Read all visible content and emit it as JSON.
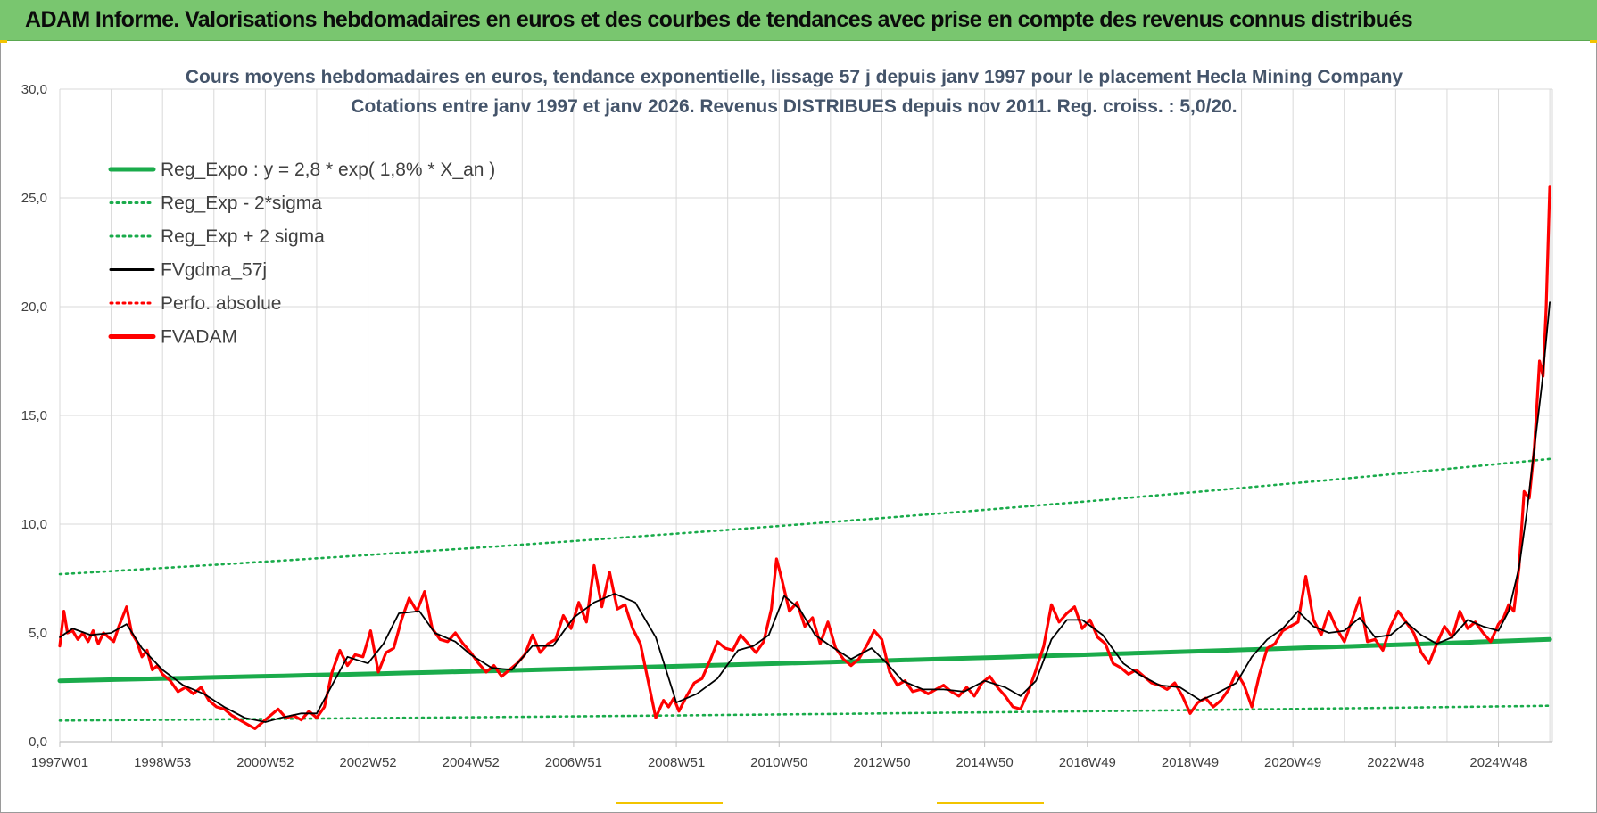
{
  "banner": {
    "title": "ADAM Informe. Valorisations hebdomadaires en euros et des courbes de tendances avec prise en compte des revenus connus distribués"
  },
  "colors": {
    "banner_bg": "#79c66f",
    "reg_expo": "#1aab4b",
    "bands": "#1aab4b",
    "fvgdma": "#000000",
    "perfo": "#ff0000",
    "fvadam": "#ff0000",
    "grid": "#d9d9d9"
  },
  "chart_data": {
    "type": "line",
    "title": "Cours moyens hebdomadaires en euros, tendance exponentielle, lissage 57 j depuis janv 1997 pour le placement Hecla Mining Company",
    "subtitle": "Cotations entre janv 1997 et janv 2026. Revenus DISTRIBUES depuis nov 2011. Reg. croiss. : 5,0/20.",
    "xlabel": "",
    "ylabel": "",
    "ylim": [
      0,
      30
    ],
    "xlim": [
      1997.0,
      2026.05
    ],
    "y_ticks": [
      "0,0",
      "5,0",
      "10,0",
      "15,0",
      "20,0",
      "25,0",
      "30,0"
    ],
    "x_tick_labels": [
      "1997W01",
      "1998W53",
      "2000W52",
      "2002W52",
      "2004W52",
      "2006W51",
      "2008W51",
      "2010W50",
      "2012W50",
      "2014W50",
      "2016W49",
      "2018W49",
      "2020W49",
      "2022W48",
      "2024W48"
    ],
    "x_tick_positions": [
      1997.0,
      1999.0,
      2001.0,
      2003.0,
      2005.0,
      2007.0,
      2009.0,
      2011.0,
      2013.0,
      2015.0,
      2017.0,
      2019.0,
      2021.0,
      2023.0,
      2025.0
    ],
    "grid": true,
    "legend_position": "top-left",
    "series": [
      {
        "name": "Reg_Expo : y = 2,8 * exp( 1,8% *  X_an )",
        "style": "solid-thick",
        "color": "#1aab4b",
        "x": [
          1997.0,
          2026.0
        ],
        "y": [
          2.8,
          4.7
        ]
      },
      {
        "name": "Reg_Exp - 2*sigma",
        "style": "dotted",
        "color": "#1aab4b",
        "x": [
          1997.0,
          2026.0
        ],
        "y": [
          0.97,
          1.65
        ]
      },
      {
        "name": "Reg_Exp + 2 sigma",
        "style": "dotted",
        "color": "#1aab4b",
        "x": [
          1997.0,
          2026.0
        ],
        "y": [
          7.7,
          13.0
        ]
      },
      {
        "name": "FVgdma_57j",
        "style": "solid-thin",
        "color": "#000000",
        "x": [
          1997.0,
          1997.25,
          1997.6,
          1998.0,
          1998.3,
          1998.6,
          1999.0,
          1999.4,
          1999.8,
          2000.2,
          2000.6,
          2001.0,
          2001.3,
          2001.7,
          2002.0,
          2002.3,
          2002.6,
          2003.0,
          2003.3,
          2003.6,
          2004.0,
          2004.3,
          2004.7,
          2005.0,
          2005.4,
          2005.8,
          2006.2,
          2006.6,
          2007.0,
          2007.4,
          2007.8,
          2008.2,
          2008.6,
          2009.0,
          2009.4,
          2009.8,
          2010.2,
          2010.5,
          2010.8,
          2011.1,
          2011.4,
          2011.7,
          2012.0,
          2012.4,
          2012.8,
          2013.1,
          2013.4,
          2013.8,
          2014.2,
          2014.6,
          2015.0,
          2015.4,
          2015.7,
          2016.0,
          2016.3,
          2016.6,
          2016.9,
          2017.3,
          2017.7,
          2018.0,
          2018.4,
          2018.8,
          2019.2,
          2019.5,
          2019.9,
          2020.2,
          2020.5,
          2020.8,
          2021.1,
          2021.4,
          2021.7,
          2022.0,
          2022.3,
          2022.6,
          2022.9,
          2023.2,
          2023.5,
          2023.8,
          2024.1,
          2024.4,
          2024.7,
          2025.0,
          2025.2,
          2025.4,
          2025.55,
          2025.7,
          2025.85,
          2026.0
        ],
        "y": [
          4.8,
          5.2,
          4.9,
          5.0,
          5.4,
          4.3,
          3.3,
          2.6,
          2.2,
          1.6,
          1.1,
          0.9,
          1.1,
          1.3,
          1.3,
          2.6,
          3.9,
          3.6,
          4.5,
          5.9,
          6.0,
          5.0,
          4.6,
          4.0,
          3.4,
          3.3,
          4.4,
          4.4,
          5.7,
          6.4,
          6.8,
          6.4,
          4.8,
          1.8,
          2.2,
          2.9,
          4.2,
          4.4,
          4.9,
          6.7,
          6.1,
          4.9,
          4.4,
          3.8,
          4.3,
          3.6,
          2.8,
          2.4,
          2.4,
          2.3,
          2.8,
          2.5,
          2.1,
          2.8,
          4.7,
          5.6,
          5.6,
          4.9,
          3.6,
          3.1,
          2.6,
          2.5,
          1.9,
          2.2,
          2.7,
          3.9,
          4.7,
          5.2,
          6.0,
          5.3,
          5.0,
          5.1,
          5.7,
          4.8,
          4.9,
          5.5,
          4.9,
          4.5,
          4.8,
          5.6,
          5.3,
          5.1,
          6.0,
          8.0,
          10.5,
          13.5,
          16.5,
          20.2
        ]
      },
      {
        "name": "Perfo. absolue",
        "style": "dotted",
        "color": "#ff0000",
        "x": [],
        "y": []
      },
      {
        "name": "FVADAM",
        "style": "solid-thick",
        "color": "#ff0000",
        "x": [
          1997.0,
          1997.08,
          1997.15,
          1997.25,
          1997.35,
          1997.45,
          1997.55,
          1997.65,
          1997.75,
          1997.85,
          1997.95,
          1998.05,
          1998.15,
          1998.3,
          1998.4,
          1998.5,
          1998.6,
          1998.7,
          1998.8,
          1998.9,
          1999.0,
          1999.15,
          1999.3,
          1999.45,
          1999.6,
          1999.75,
          1999.9,
          2000.05,
          2000.2,
          2000.35,
          2000.5,
          2000.65,
          2000.8,
          2000.95,
          2001.1,
          2001.25,
          2001.4,
          2001.55,
          2001.7,
          2001.85,
          2002.0,
          2002.15,
          2002.3,
          2002.45,
          2002.6,
          2002.75,
          2002.9,
          2003.05,
          2003.2,
          2003.35,
          2003.5,
          2003.65,
          2003.8,
          2003.95,
          2004.1,
          2004.25,
          2004.4,
          2004.55,
          2004.7,
          2004.85,
          2005.0,
          2005.15,
          2005.3,
          2005.45,
          2005.6,
          2005.75,
          2005.9,
          2006.05,
          2006.2,
          2006.35,
          2006.5,
          2006.65,
          2006.8,
          2006.95,
          2007.1,
          2007.25,
          2007.4,
          2007.55,
          2007.7,
          2007.85,
          2008.0,
          2008.15,
          2008.3,
          2008.45,
          2008.6,
          2008.75,
          2008.85,
          2008.95,
          2009.05,
          2009.2,
          2009.35,
          2009.5,
          2009.65,
          2009.8,
          2009.95,
          2010.1,
          2010.25,
          2010.4,
          2010.55,
          2010.7,
          2010.85,
          2010.95,
          2011.05,
          2011.2,
          2011.35,
          2011.5,
          2011.65,
          2011.8,
          2011.95,
          2012.1,
          2012.25,
          2012.4,
          2012.55,
          2012.7,
          2012.85,
          2013.0,
          2013.15,
          2013.3,
          2013.45,
          2013.6,
          2013.75,
          2013.9,
          2014.05,
          2014.2,
          2014.35,
          2014.5,
          2014.65,
          2014.8,
          2014.95,
          2015.1,
          2015.25,
          2015.4,
          2015.55,
          2015.7,
          2015.85,
          2016.0,
          2016.15,
          2016.3,
          2016.45,
          2016.6,
          2016.75,
          2016.9,
          2017.05,
          2017.2,
          2017.35,
          2017.5,
          2017.65,
          2017.8,
          2017.95,
          2018.1,
          2018.25,
          2018.4,
          2018.55,
          2018.7,
          2018.85,
          2019.0,
          2019.15,
          2019.3,
          2019.45,
          2019.6,
          2019.75,
          2019.9,
          2020.05,
          2020.2,
          2020.35,
          2020.5,
          2020.65,
          2020.8,
          2020.95,
          2021.1,
          2021.25,
          2021.4,
          2021.55,
          2021.7,
          2021.85,
          2022.0,
          2022.15,
          2022.3,
          2022.45,
          2022.6,
          2022.75,
          2022.9,
          2023.05,
          2023.2,
          2023.35,
          2023.5,
          2023.65,
          2023.8,
          2023.95,
          2024.1,
          2024.25,
          2024.4,
          2024.55,
          2024.7,
          2024.85,
          2025.0,
          2025.1,
          2025.2,
          2025.3,
          2025.4,
          2025.5,
          2025.6,
          2025.7,
          2025.8,
          2025.87,
          2025.93,
          2026.0
        ],
        "y": [
          4.4,
          6.0,
          5.0,
          5.1,
          4.7,
          5.0,
          4.6,
          5.1,
          4.5,
          5.0,
          4.8,
          4.6,
          5.3,
          6.2,
          5.0,
          4.6,
          3.9,
          4.2,
          3.3,
          3.5,
          3.1,
          2.8,
          2.3,
          2.5,
          2.2,
          2.5,
          1.9,
          1.6,
          1.5,
          1.2,
          1.0,
          0.8,
          0.6,
          0.9,
          1.2,
          1.5,
          1.1,
          1.2,
          1.0,
          1.4,
          1.1,
          1.6,
          3.2,
          4.2,
          3.5,
          4.0,
          3.9,
          5.1,
          3.2,
          4.1,
          4.3,
          5.6,
          6.6,
          6.0,
          6.9,
          5.2,
          4.7,
          4.6,
          5.0,
          4.5,
          4.1,
          3.6,
          3.2,
          3.5,
          3.0,
          3.3,
          3.6,
          4.0,
          4.9,
          4.1,
          4.5,
          4.7,
          5.8,
          5.2,
          6.4,
          5.5,
          8.1,
          6.2,
          7.8,
          6.1,
          6.3,
          5.2,
          4.5,
          2.8,
          1.1,
          1.9,
          1.6,
          2.0,
          1.4,
          2.1,
          2.7,
          2.9,
          3.7,
          4.6,
          4.3,
          4.2,
          4.9,
          4.5,
          4.1,
          4.6,
          6.1,
          8.4,
          7.5,
          6.0,
          6.4,
          5.3,
          5.7,
          4.5,
          5.5,
          4.3,
          3.8,
          3.5,
          3.8,
          4.4,
          5.1,
          4.7,
          3.2,
          2.6,
          2.8,
          2.3,
          2.4,
          2.2,
          2.4,
          2.6,
          2.3,
          2.1,
          2.5,
          2.1,
          2.7,
          3.0,
          2.5,
          2.1,
          1.6,
          1.5,
          2.3,
          3.3,
          4.4,
          6.3,
          5.5,
          5.9,
          6.2,
          5.2,
          5.6,
          4.8,
          4.5,
          3.6,
          3.4,
          3.1,
          3.3,
          3.0,
          2.7,
          2.6,
          2.4,
          2.7,
          2.1,
          1.3,
          1.8,
          2.0,
          1.6,
          1.9,
          2.4,
          3.2,
          2.6,
          1.6,
          3.1,
          4.3,
          4.5,
          5.1,
          5.3,
          5.5,
          7.6,
          5.6,
          4.9,
          6.0,
          5.2,
          4.6,
          5.6,
          6.6,
          4.6,
          4.7,
          4.2,
          5.3,
          6.0,
          5.5,
          5.0,
          4.1,
          3.6,
          4.5,
          5.3,
          4.8,
          6.0,
          5.2,
          5.5,
          5.0,
          4.6,
          5.4,
          5.7,
          6.3,
          6.0,
          8.0,
          11.5,
          11.2,
          13.5,
          17.5,
          16.8,
          20.0,
          25.5
        ]
      }
    ]
  }
}
